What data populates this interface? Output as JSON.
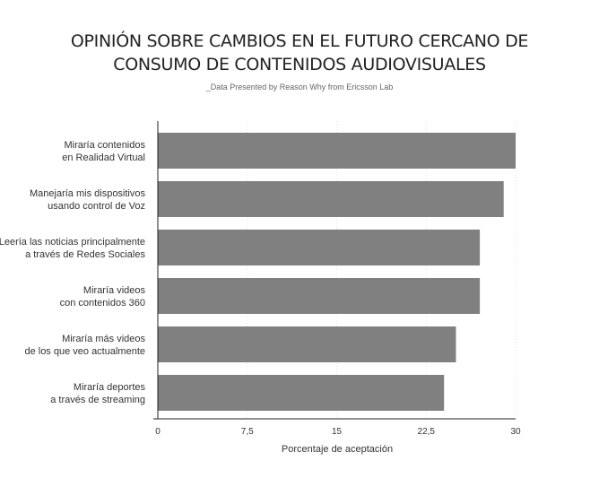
{
  "chart_data": {
    "type": "bar",
    "orientation": "horizontal",
    "title_lines": [
      "OPINIÓN SOBRE CAMBIOS EN EL FUTURO CERCANO DE",
      "CONSUMO DE CONTENIDOS AUDIOVISUALES"
    ],
    "subtitle": "_Data Presented by Reason Why from Ericsson Lab",
    "xlabel": "Porcentaje de aceptación",
    "xlim": [
      0,
      30
    ],
    "ticks": [
      0,
      7.5,
      15,
      22.5,
      30
    ],
    "tick_labels": [
      "0",
      "7,5",
      "15",
      "22,5",
      "30"
    ],
    "grid": true,
    "bar_color": "#808080",
    "categories": [
      [
        "Miraría contenidos",
        "en Realidad Virtual"
      ],
      [
        "Manejaría mis dispositivos",
        "usando control de Voz"
      ],
      [
        "Leería las noticias principalmente",
        "a través de Redes Sociales"
      ],
      [
        "Miraría videos",
        "con contenidos 360"
      ],
      [
        "Miraría más videos",
        "de los que veo actualmente"
      ],
      [
        "Miraría deportes",
        "a través de streaming"
      ]
    ],
    "values": [
      30,
      29,
      27,
      27,
      25,
      24
    ]
  }
}
